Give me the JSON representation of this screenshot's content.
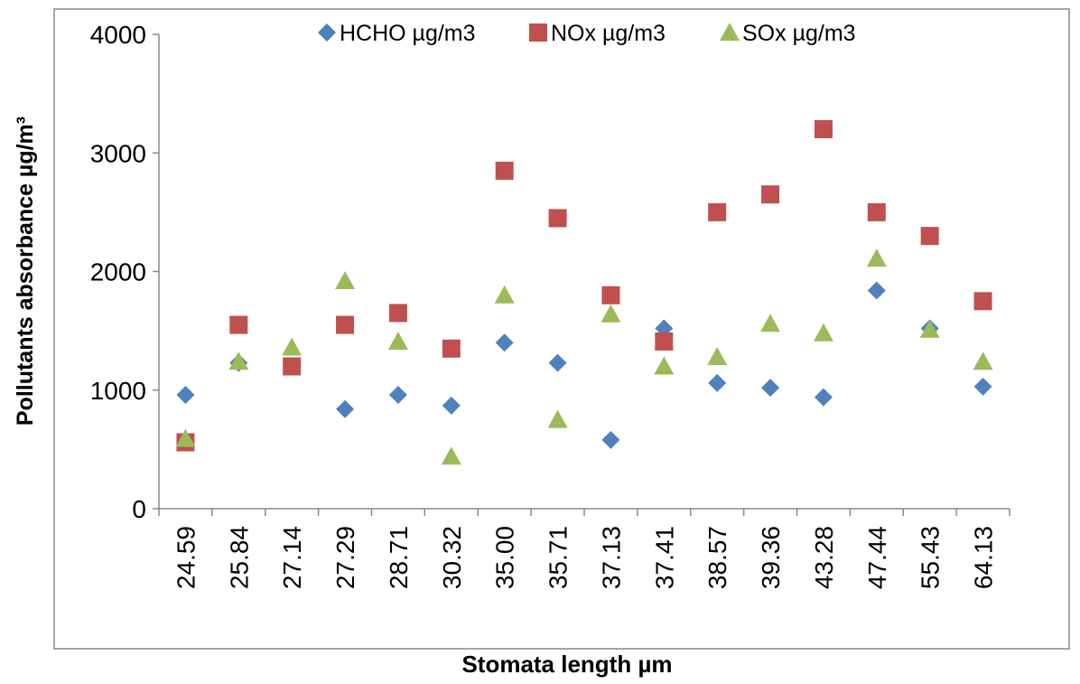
{
  "chart_data": {
    "type": "scatter",
    "x_label": "Stomata length µm",
    "y_label": "Pollutants absorbance µg/m³",
    "categories": [
      "24.59",
      "25.84",
      "27.14",
      "27.29",
      "28.71",
      "30.32",
      "35.00",
      "35.71",
      "37.13",
      "37.41",
      "38.57",
      "39.36",
      "43.28",
      "47.44",
      "55.43",
      "64.13"
    ],
    "series": [
      {
        "name": "HCHO µg/m3",
        "color": "#4f81bd",
        "marker": "diamond",
        "values": [
          960,
          1230,
          null,
          840,
          960,
          870,
          1400,
          1230,
          580,
          1520,
          1060,
          1020,
          940,
          1840,
          1520,
          1030
        ]
      },
      {
        "name": "NOx µg/m3",
        "color": "#c0504d",
        "marker": "square",
        "values": [
          560,
          1550,
          1200,
          1550,
          1650,
          1350,
          2850,
          2450,
          1800,
          1410,
          2500,
          2650,
          3200,
          2500,
          2300,
          1750
        ]
      },
      {
        "name": "SOx µg/m3",
        "color": "#9bbb59",
        "marker": "triangle",
        "values": [
          590,
          1240,
          1360,
          1920,
          1410,
          440,
          1800,
          750,
          1640,
          1200,
          1280,
          1560,
          1480,
          2110,
          1510,
          1240
        ]
      }
    ],
    "ylim": [
      0,
      4000
    ],
    "yticks": [
      0,
      1000,
      2000,
      3000,
      4000
    ],
    "grid": false,
    "legend": "top"
  }
}
